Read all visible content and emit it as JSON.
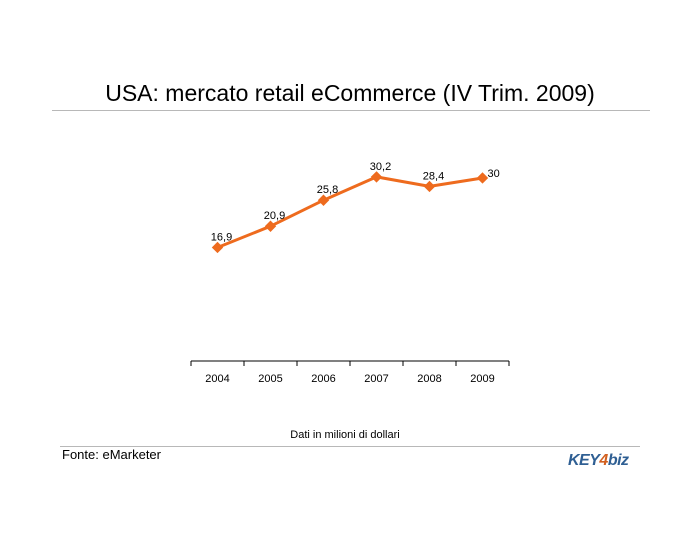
{
  "slide": {
    "source": "Fonte: eMarketer",
    "logo": {
      "text_main": "KEY",
      "text_digit": "4",
      "text_tail": "biz"
    }
  },
  "chart_data": {
    "type": "line",
    "title": "USA: mercato retail eCommerce (IV Trim. 2009)",
    "xlabel": "Dati in milioni di dollari",
    "ylabel": "",
    "categories": [
      "2004",
      "2005",
      "2006",
      "2007",
      "2008",
      "2009"
    ],
    "series": [
      {
        "values": [
          16.9,
          20.9,
          25.8,
          30.2,
          28.4,
          30
        ],
        "labels": [
          "16,9",
          "20,9",
          "25,8",
          "30,2",
          "28,4",
          "30"
        ],
        "color": "#ee6b1e",
        "marker": "diamond"
      }
    ],
    "ylim": [
      -4.5,
      31.5
    ],
    "grid": false,
    "legend": "none"
  }
}
